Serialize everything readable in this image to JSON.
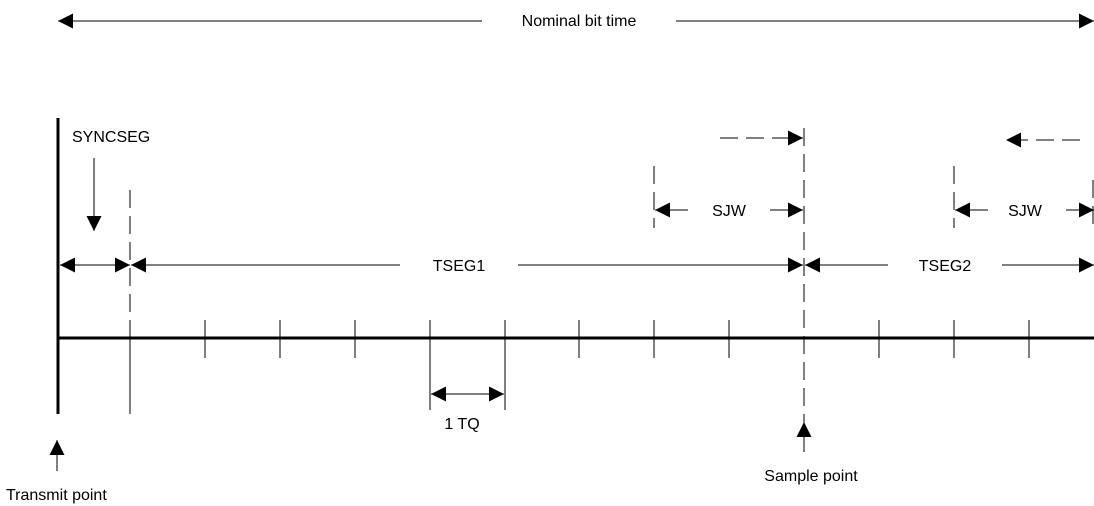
{
  "labels": {
    "nominal_bit_time": "Nominal bit time",
    "syncseg": "SYNCSEG",
    "tseg1": "TSEG1",
    "tseg2": "TSEG2",
    "sjw_left": "SJW",
    "sjw_right": "SJW",
    "one_tq": "1 TQ",
    "sample_point": "Sample point",
    "transmit_point": "Transmit point"
  },
  "colors": {
    "ink": "#000000",
    "background": "#ffffff"
  }
}
